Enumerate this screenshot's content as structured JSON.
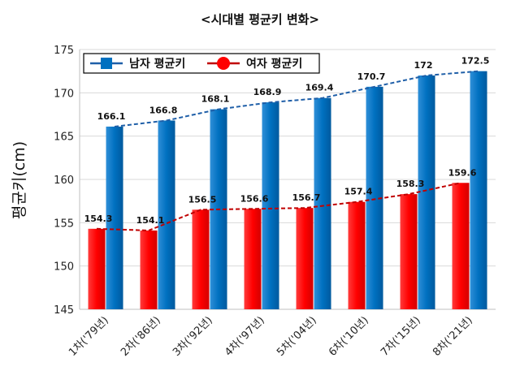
{
  "chart_data": {
    "type": "bar",
    "title": "<시대별 평균키 변화>",
    "ylabel": "평균키(cm)",
    "xlabel": "",
    "ylim": [
      145,
      175
    ],
    "yticks": [
      145,
      150,
      155,
      160,
      165,
      170,
      175
    ],
    "categories": [
      "1차('79년)",
      "2차('86년)",
      "3차('92년)",
      "4차('97년)",
      "5차('04년)",
      "6차('10년)",
      "7차('15년)",
      "8차('21년)"
    ],
    "series": [
      {
        "name": "남자 평균키",
        "color": "#0070C0",
        "values": [
          166.1,
          166.8,
          168.1,
          168.9,
          169.4,
          170.7,
          172,
          172.5
        ],
        "value_labels": [
          "166.1",
          "166.8",
          "168.1",
          "168.9",
          "169.4",
          "170.7",
          "172",
          "172.5"
        ]
      },
      {
        "name": "여자 평균키",
        "color": "#FF0000",
        "values": [
          154.3,
          154.1,
          156.5,
          156.6,
          156.7,
          157.4,
          158.3,
          159.6
        ],
        "value_labels": [
          "154.3",
          "154.1",
          "156.5",
          "156.6",
          "156.7",
          "157.4",
          "158.3",
          "159.6"
        ]
      }
    ],
    "trend_lines": true,
    "legend_position": "top-left",
    "grid": true
  }
}
